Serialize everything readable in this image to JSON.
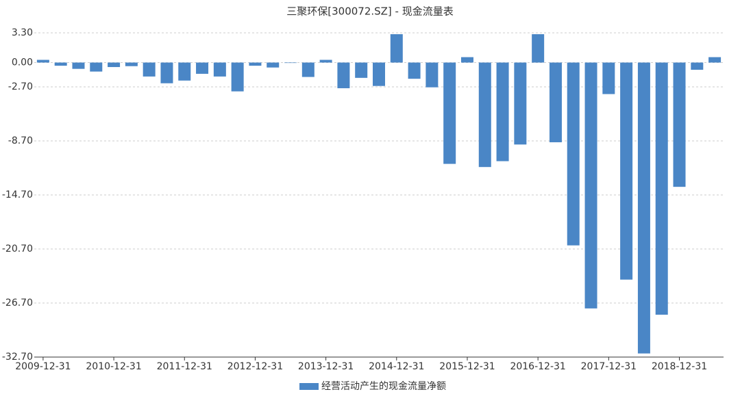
{
  "chart_data": {
    "type": "bar",
    "title": "三聚环保[300072.SZ] - 现金流量表",
    "categories": [
      "2009-12-31",
      null,
      null,
      null,
      "2010-12-31",
      null,
      null,
      null,
      "2011-12-31",
      null,
      null,
      null,
      "2012-12-31",
      null,
      null,
      null,
      "2013-12-31",
      null,
      null,
      null,
      "2014-12-31",
      null,
      null,
      null,
      "2015-12-31",
      null,
      null,
      null,
      "2016-12-31",
      null,
      null,
      null,
      "2017-12-31",
      null,
      null,
      null,
      "2018-12-31",
      null,
      null
    ],
    "series": [
      {
        "name": "经营活动产生的现金流量净额",
        "color": "#4a86c6",
        "values": [
          0.3,
          -0.35,
          -0.7,
          -1.0,
          -0.5,
          -0.4,
          -1.55,
          -2.3,
          -2.0,
          -1.25,
          -1.55,
          -3.2,
          -0.35,
          -0.55,
          -0.05,
          -1.6,
          0.3,
          -2.85,
          -1.7,
          -2.6,
          3.15,
          -1.8,
          -2.75,
          -11.25,
          0.6,
          -11.6,
          -10.95,
          -9.1,
          3.15,
          -8.85,
          -20.3,
          -27.3,
          -3.5,
          -24.1,
          -32.3,
          -28.0,
          -13.8,
          -0.8,
          0.6
        ]
      }
    ],
    "ylim": [
      -32.7,
      3.3
    ],
    "yticks": [
      {
        "value": 3.3,
        "label": "3.30"
      },
      {
        "value": 0,
        "label": "0.00"
      },
      {
        "value": -2.7,
        "label": "-2.70"
      },
      {
        "value": -8.7,
        "label": "-8.70"
      },
      {
        "value": -14.7,
        "label": "-14.70"
      },
      {
        "value": -20.7,
        "label": "-20.70"
      },
      {
        "value": -26.7,
        "label": "-26.70"
      },
      {
        "value": -32.7,
        "label": "-32.70"
      }
    ],
    "grid": true,
    "legend": "bottom"
  }
}
